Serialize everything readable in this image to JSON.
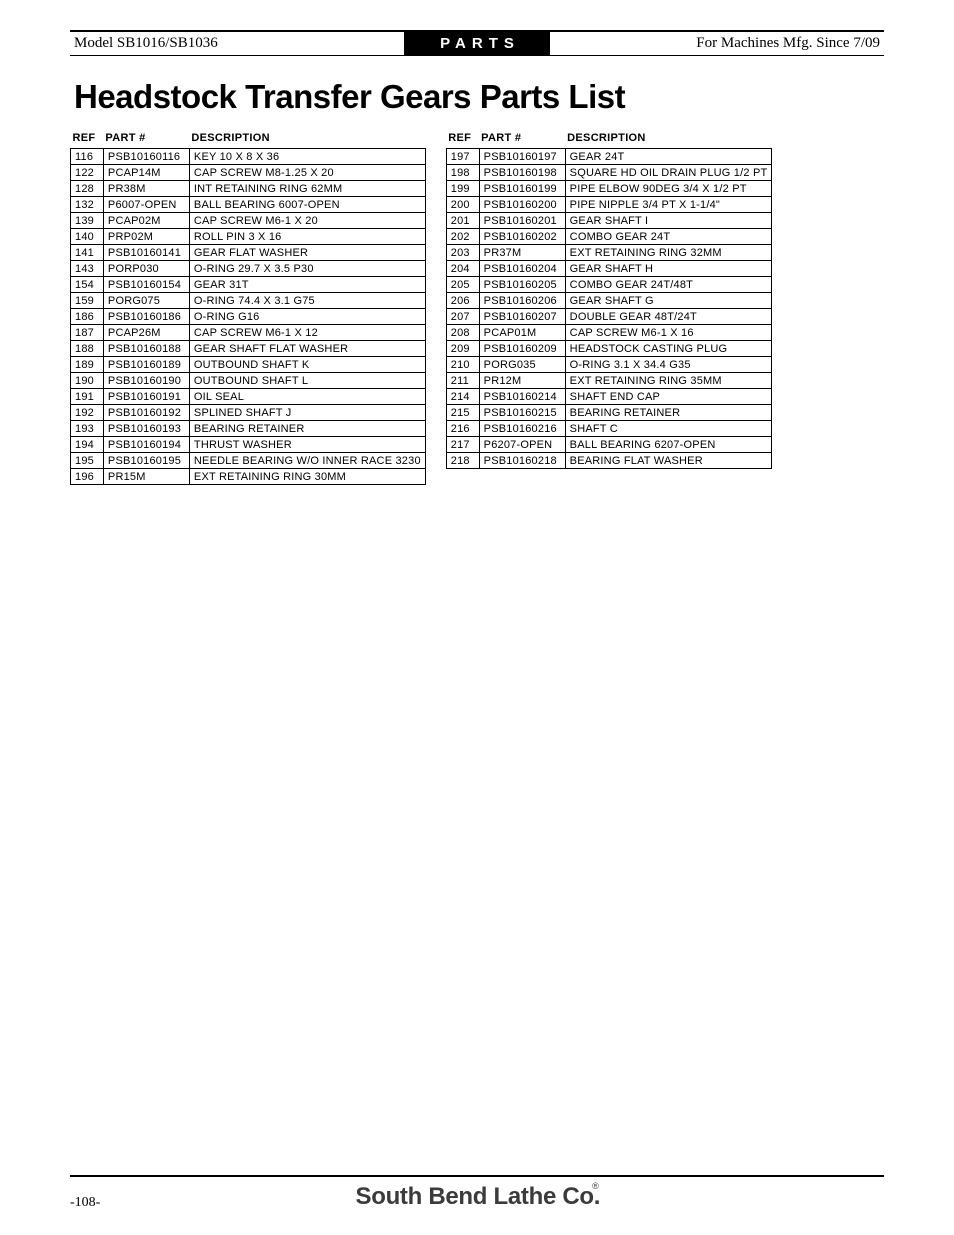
{
  "header": {
    "left": "Model SB1016/SB1036",
    "center": "PARTS",
    "right": "For Machines Mfg. Since 7/09"
  },
  "title": "Headstock Transfer Gears Parts List",
  "columns": [
    "REF",
    "PART #",
    "DESCRIPTION"
  ],
  "left_rows": [
    [
      "116",
      "PSB10160116",
      "KEY 10 X 8 X 36"
    ],
    [
      "122",
      "PCAP14M",
      "CAP SCREW M8-1.25 X 20"
    ],
    [
      "128",
      "PR38M",
      "INT RETAINING RING 62MM"
    ],
    [
      "132",
      "P6007-OPEN",
      "BALL BEARING 6007-OPEN"
    ],
    [
      "139",
      "PCAP02M",
      "CAP SCREW M6-1 X 20"
    ],
    [
      "140",
      "PRP02M",
      "ROLL PIN 3 X 16"
    ],
    [
      "141",
      "PSB10160141",
      "GEAR FLAT WASHER"
    ],
    [
      "143",
      "PORP030",
      "O-RING 29.7 X 3.5 P30"
    ],
    [
      "154",
      "PSB10160154",
      "GEAR 31T"
    ],
    [
      "159",
      "PORG075",
      "O-RING 74.4 X 3.1 G75"
    ],
    [
      "186",
      "PSB10160186",
      "O-RING G16"
    ],
    [
      "187",
      "PCAP26M",
      "CAP SCREW M6-1 X 12"
    ],
    [
      "188",
      "PSB10160188",
      "GEAR SHAFT FLAT WASHER"
    ],
    [
      "189",
      "PSB10160189",
      "OUTBOUND SHAFT K"
    ],
    [
      "190",
      "PSB10160190",
      "OUTBOUND SHAFT L"
    ],
    [
      "191",
      "PSB10160191",
      "OIL SEAL"
    ],
    [
      "192",
      "PSB10160192",
      "SPLINED SHAFT J"
    ],
    [
      "193",
      "PSB10160193",
      "BEARING RETAINER"
    ],
    [
      "194",
      "PSB10160194",
      "THRUST WASHER"
    ],
    [
      "195",
      "PSB10160195",
      "NEEDLE BEARING W/O INNER RACE 3230"
    ],
    [
      "196",
      "PR15M",
      "EXT RETAINING RING 30MM"
    ]
  ],
  "right_rows": [
    [
      "197",
      "PSB10160197",
      "GEAR 24T"
    ],
    [
      "198",
      "PSB10160198",
      "SQUARE HD OIL DRAIN PLUG 1/2 PT"
    ],
    [
      "199",
      "PSB10160199",
      "PIPE ELBOW 90DEG 3/4 X 1/2 PT"
    ],
    [
      "200",
      "PSB10160200",
      "PIPE NIPPLE 3/4 PT X 1-1/4\""
    ],
    [
      "201",
      "PSB10160201",
      "GEAR SHAFT I"
    ],
    [
      "202",
      "PSB10160202",
      "COMBO GEAR 24T"
    ],
    [
      "203",
      "PR37M",
      "EXT RETAINING RING 32MM"
    ],
    [
      "204",
      "PSB10160204",
      "GEAR SHAFT H"
    ],
    [
      "205",
      "PSB10160205",
      "COMBO GEAR 24T/48T"
    ],
    [
      "206",
      "PSB10160206",
      "GEAR SHAFT G"
    ],
    [
      "207",
      "PSB10160207",
      "DOUBLE GEAR 48T/24T"
    ],
    [
      "208",
      "PCAP01M",
      "CAP SCREW M6-1 X 16"
    ],
    [
      "209",
      "PSB10160209",
      "HEADSTOCK CASTING PLUG"
    ],
    [
      "210",
      "PORG035",
      "O-RING 3.1 X 34.4 G35"
    ],
    [
      "211",
      "PR12M",
      "EXT RETAINING RING 35MM"
    ],
    [
      "214",
      "PSB10160214",
      "SHAFT END CAP"
    ],
    [
      "215",
      "PSB10160215",
      "BEARING RETAINER"
    ],
    [
      "216",
      "PSB10160216",
      "SHAFT C"
    ],
    [
      "217",
      "P6207-OPEN",
      "BALL BEARING 6207-OPEN"
    ],
    [
      "218",
      "PSB10160218",
      "BEARING FLAT WASHER"
    ]
  ],
  "footer": {
    "page": "-108-",
    "brand": "South Bend Lathe Co."
  }
}
